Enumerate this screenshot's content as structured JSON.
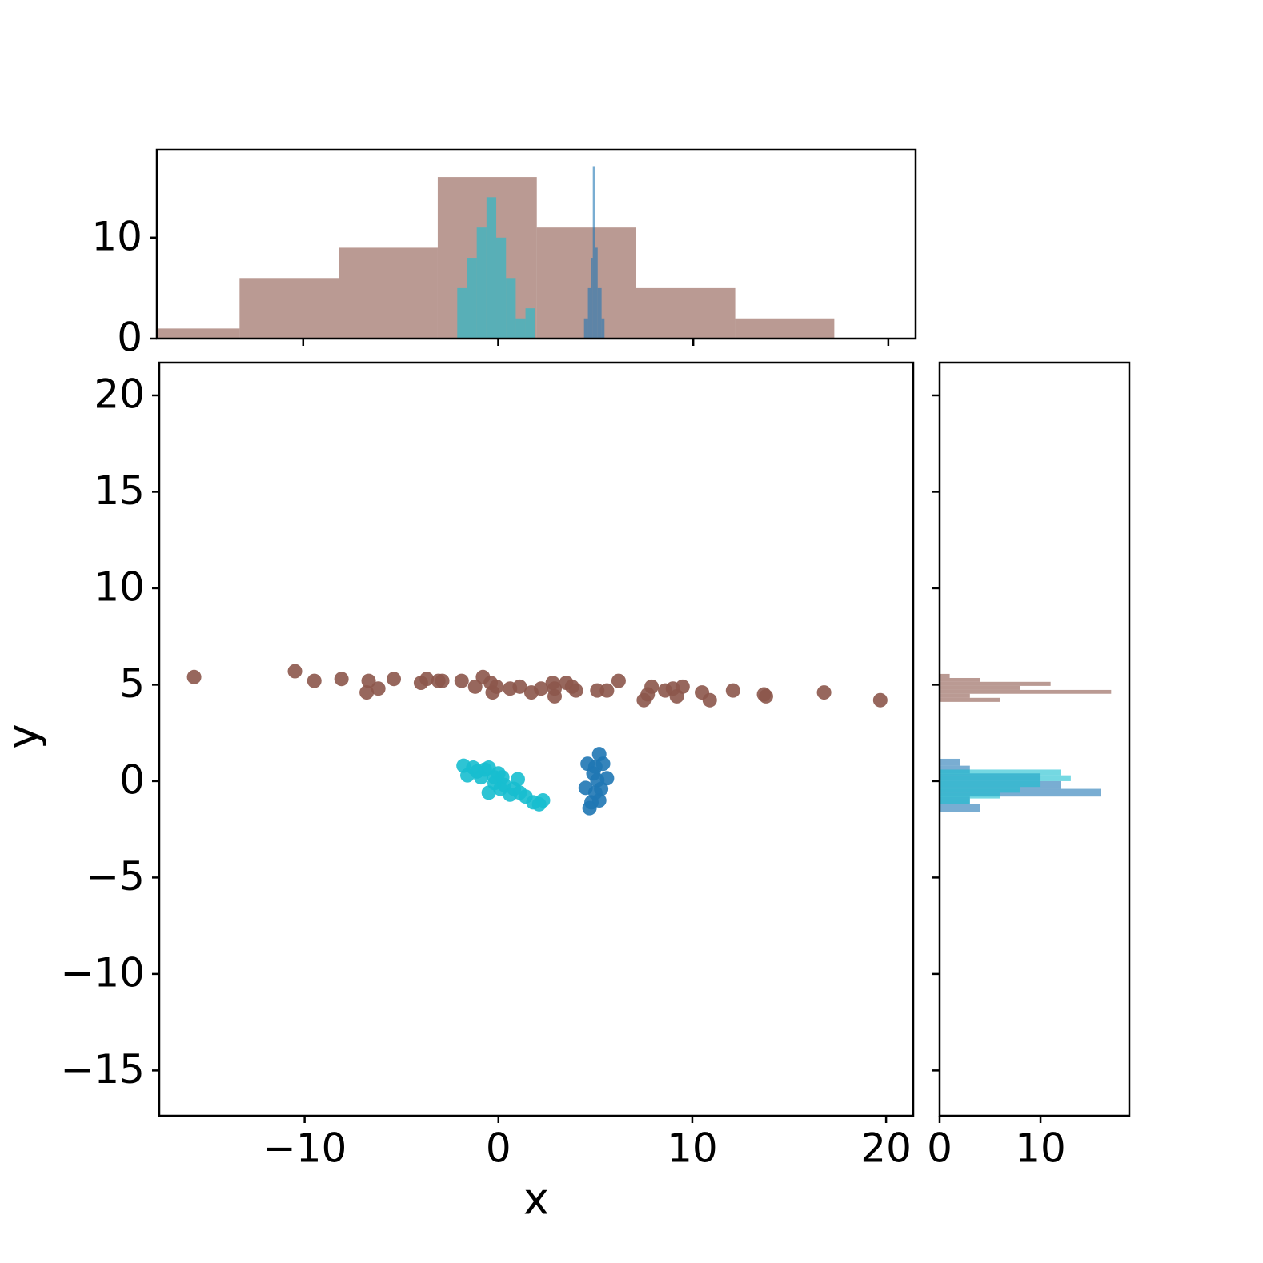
{
  "chart_data": [
    {
      "type": "scatter",
      "xlabel": "x",
      "ylabel": "y",
      "xlim": [
        -17.5,
        21.4
      ],
      "ylim": [
        -17.35,
        21.7
      ],
      "xticks": [
        {
          "value": -10,
          "label": "−10"
        },
        0,
        10,
        20
      ],
      "yticks": [
        {
          "value": -15,
          "label": "−15"
        },
        {
          "value": -10,
          "label": "−10"
        },
        {
          "value": -5,
          "label": "−5"
        },
        0,
        5,
        10,
        15,
        20
      ],
      "series": [
        {
          "color": "#8c564b",
          "x": [
            -15.7,
            -10.5,
            -9.5,
            -8.1,
            -6.7,
            -6.8,
            -6.2,
            -5.4,
            -4.0,
            -3.7,
            -3.1,
            -2.9,
            -1.9,
            -1.2,
            -0.8,
            -0.4,
            -0.3,
            -0.1,
            0.6,
            1.1,
            1.7,
            2.2,
            2.8,
            2.9,
            2.9,
            3.5,
            3.8,
            4.0,
            5.1,
            5.6,
            6.2,
            7.5,
            7.7,
            7.9,
            8.6,
            9.0,
            9.2,
            9.5,
            10.5,
            10.9,
            12.1,
            13.7,
            13.8,
            16.8,
            19.7
          ],
          "values": [
            5.4,
            5.7,
            5.2,
            5.3,
            5.2,
            4.6,
            4.8,
            5.3,
            5.1,
            5.3,
            5.2,
            5.2,
            5.2,
            4.9,
            5.4,
            5.1,
            4.6,
            4.9,
            4.8,
            4.9,
            4.6,
            4.8,
            5.1,
            4.8,
            4.4,
            5.1,
            4.9,
            4.7,
            4.7,
            4.7,
            5.2,
            4.2,
            4.5,
            4.9,
            4.7,
            4.8,
            4.4,
            4.9,
            4.6,
            4.2,
            4.7,
            4.5,
            4.4,
            4.6,
            4.2
          ]
        },
        {
          "color": "#17becf",
          "x": [
            -1.8,
            -1.6,
            -1.3,
            -1.1,
            -0.9,
            -0.7,
            -0.5,
            -0.5,
            -0.2,
            0.0,
            0.2,
            0.3,
            0.6,
            0.8,
            1.0,
            1.1,
            1.4,
            1.8,
            2.1,
            2.3,
            -0.2,
            0.1
          ],
          "values": [
            0.8,
            0.3,
            0.7,
            0.5,
            0.2,
            0.6,
            0.7,
            -0.6,
            0.2,
            0.4,
            0.2,
            -0.2,
            -0.7,
            -0.4,
            0.1,
            -0.6,
            -0.8,
            -1.1,
            -1.2,
            -1.0,
            -0.1,
            -0.4
          ]
        },
        {
          "color": "#1f77b4",
          "x": [
            5.2,
            4.6,
            5.0,
            5.4,
            4.9,
            5.6,
            5.1,
            4.5,
            5.0,
            5.2,
            4.8,
            4.7,
            5.3
          ],
          "values": [
            1.4,
            0.9,
            0.75,
            0.9,
            0.4,
            0.15,
            0.05,
            -0.35,
            -0.6,
            -1.0,
            -1.1,
            -1.4,
            -0.4
          ]
        }
      ]
    },
    {
      "type": "histogram",
      "orientation": "vertical",
      "xlim": [
        -17.5,
        21.4
      ],
      "ylim": [
        0,
        18.7
      ],
      "xticks": [
        -10,
        0,
        10,
        20
      ],
      "show_xticklabels": false,
      "yticks": [
        0,
        10
      ],
      "series": [
        {
          "color": "#8c564b",
          "bins": [
            -18.34,
            -13.26,
            -8.18,
            -3.1,
            1.98,
            7.07,
            12.15,
            17.23
          ],
          "values": [
            1,
            6,
            9,
            16,
            11,
            5,
            2
          ]
        },
        {
          "color": "#17becf",
          "bins": [
            -2.1,
            -1.6,
            -1.1,
            -0.6,
            -0.1,
            0.4,
            0.9,
            1.4,
            1.9
          ],
          "values": [
            5,
            8,
            11,
            14,
            10,
            6,
            2,
            3
          ]
        },
        {
          "color": "#1f77b4",
          "bins": [
            4.4,
            4.6,
            4.75,
            4.85,
            4.95,
            5.1,
            5.3,
            5.45
          ],
          "values": [
            2,
            5,
            8,
            17,
            9,
            5,
            2
          ]
        }
      ]
    },
    {
      "type": "histogram",
      "orientation": "horizontal",
      "xlim": [
        0,
        18.8
      ],
      "ylim": [
        -17.35,
        21.7
      ],
      "xticks": [
        0,
        10
      ],
      "yticks": [
        -15,
        -10,
        -5,
        0,
        5,
        10,
        15,
        20
      ],
      "show_yticklabels": false,
      "series": [
        {
          "color": "#8c564b",
          "bins": [
            4.11,
            4.32,
            4.53,
            4.73,
            4.94,
            5.15,
            5.35,
            5.56
          ],
          "values": [
            6,
            3,
            17,
            8,
            11,
            4,
            1
          ]
        },
        {
          "color": "#1f77b4",
          "bins": [
            -1.6,
            -1.2,
            -0.8,
            -0.4,
            0.0,
            0.4,
            0.8,
            1.16
          ],
          "values": [
            4,
            3,
            16,
            12,
            10,
            3,
            2
          ]
        },
        {
          "color": "#17becf",
          "bins": [
            -1.2,
            -0.9,
            -0.6,
            -0.3,
            0.0,
            0.3,
            0.6
          ],
          "values": [
            3,
            6,
            8,
            10,
            13,
            12,
            5
          ]
        }
      ]
    }
  ]
}
